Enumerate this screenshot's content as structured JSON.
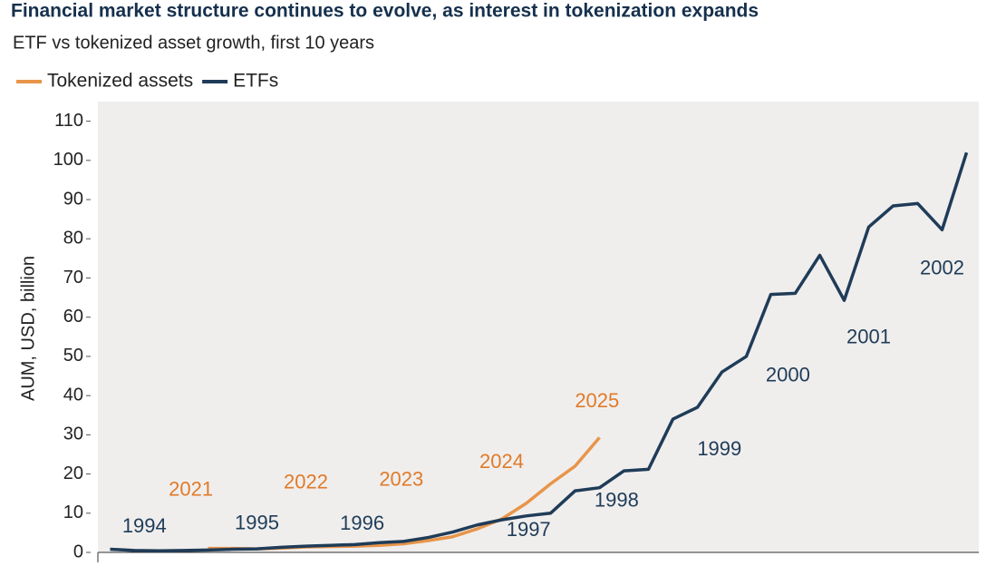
{
  "chart_data": {
    "type": "line",
    "title": "Financial market structure continues to evolve, as interest in tokenization expands",
    "subtitle": "ETF vs tokenized asset growth, first 10 years",
    "y_label": "AUM, USD, billion",
    "x": [
      0,
      1,
      2,
      3,
      4,
      5,
      6,
      7,
      8,
      9,
      10,
      11,
      12,
      13,
      14,
      15,
      16,
      17,
      18,
      19,
      20,
      21,
      22,
      23,
      24,
      25,
      26,
      27,
      28,
      29,
      30,
      31,
      32,
      33,
      34,
      35
    ],
    "xlim": [
      -0.5,
      35.5
    ],
    "ylim": [
      0,
      115
    ],
    "yticks": [
      0,
      10,
      20,
      30,
      40,
      50,
      60,
      70,
      80,
      90,
      100,
      110
    ],
    "legend": "top-left",
    "series": [
      {
        "name": "Tokenized assets",
        "color": "#e8954a",
        "values": [
          null,
          null,
          null,
          null,
          1.0,
          1.0,
          0.9,
          1.1,
          1.4,
          1.5,
          1.6,
          1.8,
          2.2,
          3.0,
          4.0,
          6.0,
          8.5,
          12.5,
          17.5,
          22,
          29.3,
          null,
          null,
          null,
          null,
          null,
          null,
          null,
          null,
          null,
          null,
          null,
          null,
          null,
          null,
          null
        ]
      },
      {
        "name": "ETFs",
        "color": "#1f3c58",
        "values": [
          0.8,
          0.5,
          0.4,
          0.5,
          0.6,
          0.8,
          0.9,
          1.3,
          1.6,
          1.8,
          2.0,
          2.5,
          2.8,
          3.8,
          5.2,
          7.0,
          8.3,
          9.3,
          10,
          15.7,
          16.5,
          20.8,
          21.2,
          34,
          37,
          46,
          50,
          65.8,
          66.1,
          75.8,
          64.3,
          83,
          88.4,
          89,
          82.3,
          102
        ]
      }
    ],
    "annotations": [
      {
        "text": "1994",
        "x": 1.4,
        "y": 6.4,
        "color": "#1f3c58"
      },
      {
        "text": "2021",
        "x": 3.3,
        "y": 15.8,
        "color": "#e07b2a"
      },
      {
        "text": "1995",
        "x": 6.0,
        "y": 7.3,
        "color": "#1f3c58"
      },
      {
        "text": "2022",
        "x": 8.0,
        "y": 17.6,
        "color": "#e07b2a"
      },
      {
        "text": "1996",
        "x": 10.3,
        "y": 7.1,
        "color": "#1f3c58"
      },
      {
        "text": "2023",
        "x": 11.9,
        "y": 18.3,
        "color": "#e07b2a"
      },
      {
        "text": "2024",
        "x": 16.0,
        "y": 22.9,
        "color": "#e07b2a"
      },
      {
        "text": "1997",
        "x": 17.1,
        "y": 5.5,
        "color": "#1f3c58"
      },
      {
        "text": "2025",
        "x": 19.9,
        "y": 38.4,
        "color": "#e07b2a"
      },
      {
        "text": "1998",
        "x": 20.7,
        "y": 13,
        "color": "#1f3c58"
      },
      {
        "text": "1999",
        "x": 24.9,
        "y": 26.1,
        "color": "#1f3c58"
      },
      {
        "text": "2000",
        "x": 27.7,
        "y": 45,
        "color": "#1f3c58"
      },
      {
        "text": "2001",
        "x": 31.0,
        "y": 54.7,
        "color": "#1f3c58"
      },
      {
        "text": "2002",
        "x": 34.0,
        "y": 72.3,
        "color": "#1f3c58"
      }
    ]
  }
}
